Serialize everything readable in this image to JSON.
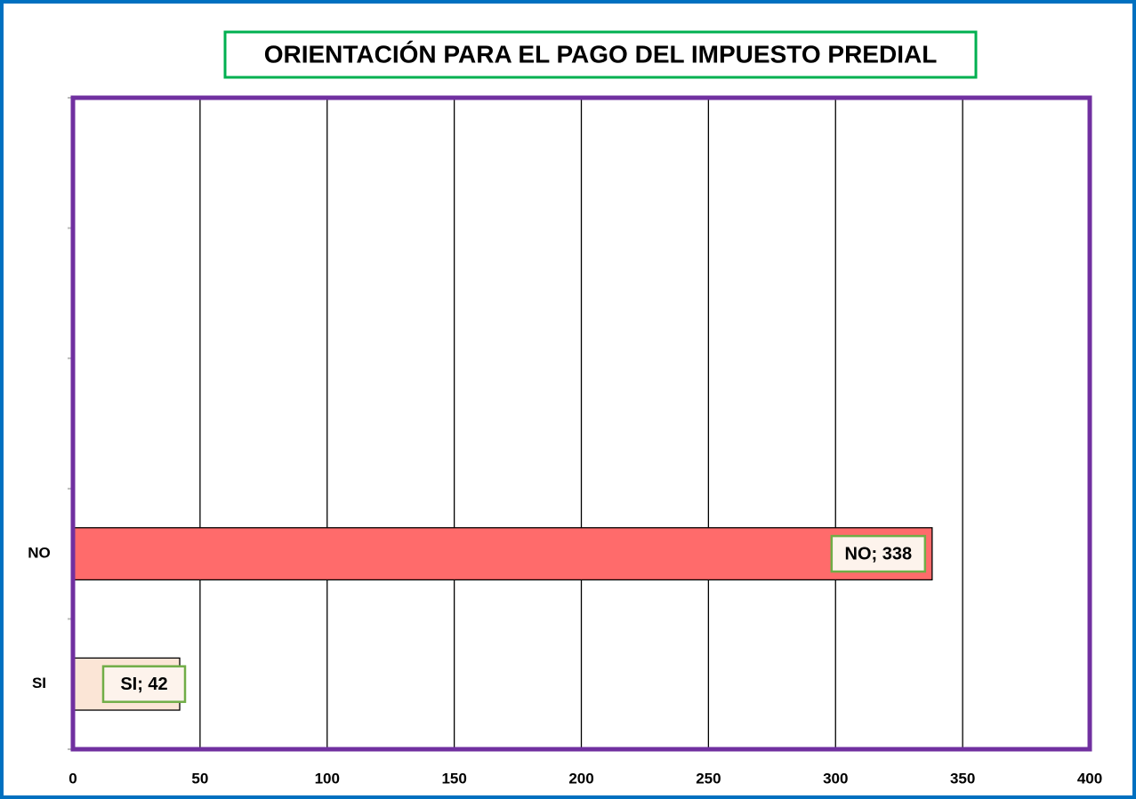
{
  "chart_data": {
    "type": "bar",
    "orientation": "horizontal",
    "title": "ORIENTACIÓN PARA EL PAGO DEL IMPUESTO PREDIAL",
    "categories": [
      null,
      null,
      null,
      "NO",
      "SI"
    ],
    "values": [
      null,
      null,
      null,
      338,
      42
    ],
    "value_labels": [
      null,
      null,
      null,
      "NO; 338",
      "SI; 42"
    ],
    "colors": [
      null,
      null,
      null,
      "#ff6b6b",
      "#fbe5d6"
    ],
    "xlim": [
      0,
      400
    ],
    "xticks": [
      0,
      50,
      100,
      150,
      200,
      250,
      300,
      350,
      400
    ],
    "grid": true
  }
}
